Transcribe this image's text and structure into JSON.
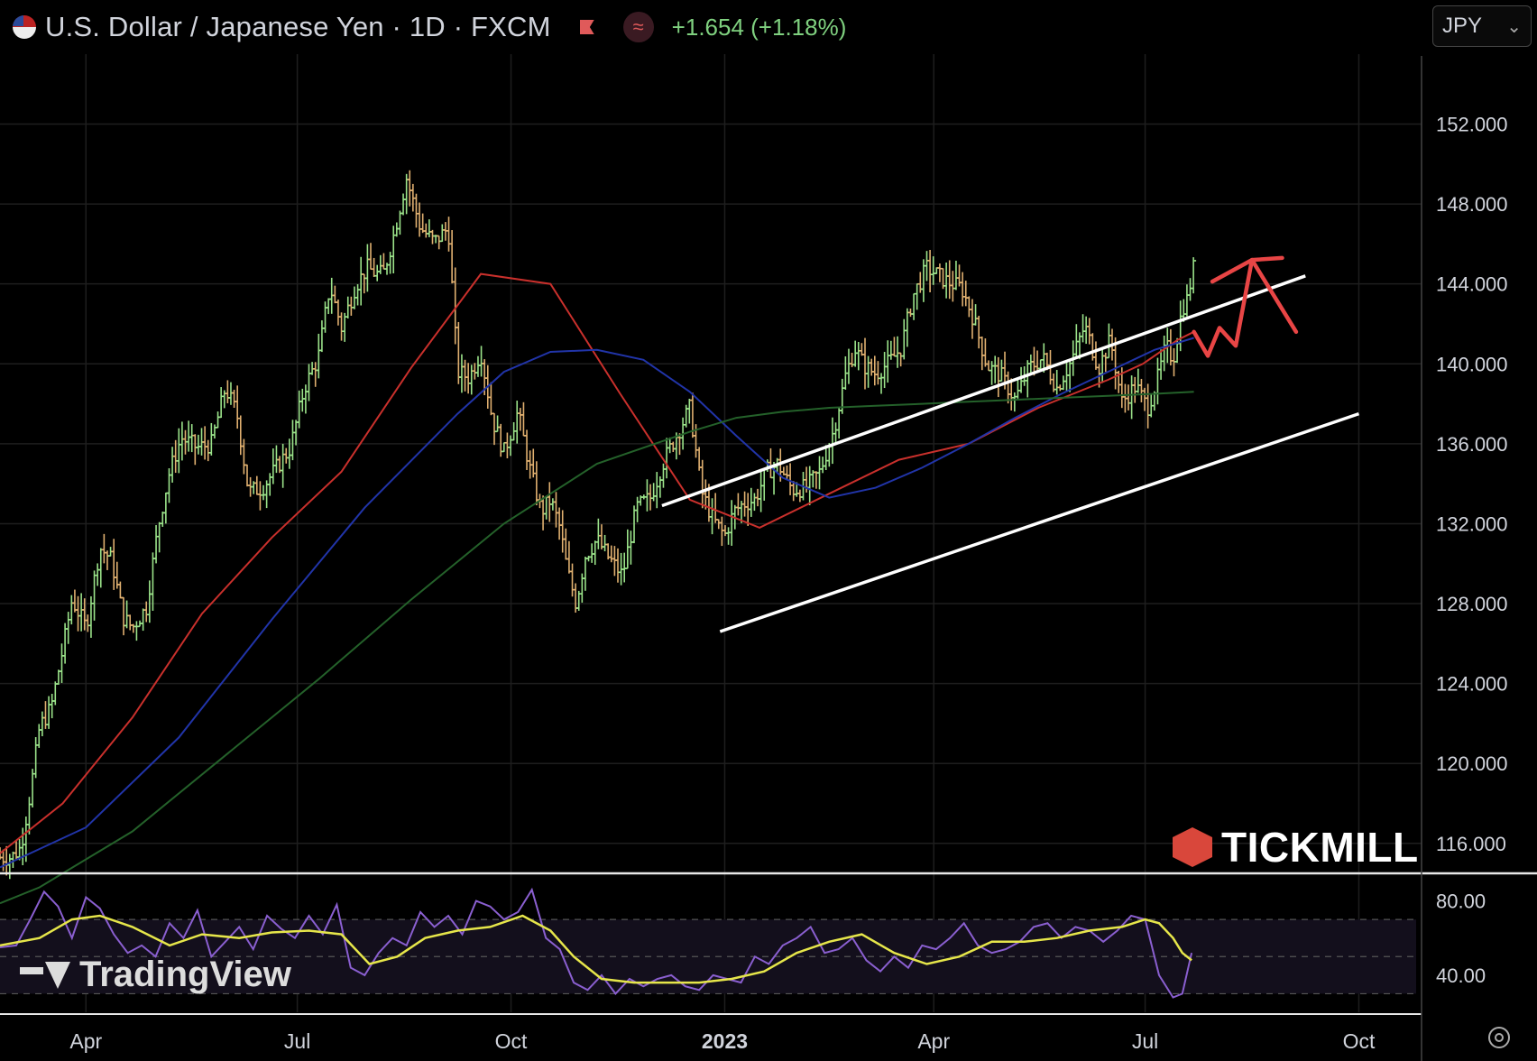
{
  "header": {
    "title": "U.S. Dollar / Japanese Yen · 1D · FXCM",
    "change": "+1.654 (+1.18%)",
    "indicator_symbol": "≈"
  },
  "currency_selector": {
    "value": "JPY",
    "chevron": "⌄"
  },
  "branding": {
    "tickmill": "TICKMILL",
    "tradingview": "TradingView"
  },
  "icons": {
    "flag": "us-flag-icon",
    "alert": "flag-alert-icon",
    "indicator": "indicator-icon",
    "settings": "gear-icon"
  },
  "colors": {
    "up": "#9be38a",
    "down": "#e0b070",
    "ma_short": "#c9302c",
    "ma_mid": "#2134a8",
    "ma_long": "#24612a",
    "channel": "#ffffff",
    "forecast": "#e84545",
    "rsi": "#8a5fd0",
    "rsi_ma": "#e6e64a",
    "positive": "#7fd07f"
  },
  "chart_data": [
    {
      "type": "line",
      "subtype": "candlestick",
      "title": "U.S. Dollar / Japanese Yen · 1D · FXCM",
      "x_ticks": [
        "Apr",
        "Jul",
        "Oct",
        "2023",
        "Apr",
        "Jul",
        "Oct"
      ],
      "x_tick_days": [
        90,
        181,
        273,
        365,
        455,
        546,
        638
      ],
      "xlim_days": [
        53,
        665
      ],
      "y_ticks": [
        "116.000",
        "120.000",
        "124.000",
        "128.000",
        "132.000",
        "136.000",
        "140.000",
        "144.000",
        "148.000",
        "152.000"
      ],
      "y_tick_values": [
        116,
        120,
        124,
        128,
        132,
        136,
        140,
        144,
        148,
        152
      ],
      "ylim": [
        114.5,
        155.5
      ],
      "grid": true,
      "price_path": {
        "days": [
          53,
          58,
          62,
          66,
          70,
          75,
          80,
          84,
          90,
          96,
          101,
          106,
          110,
          116,
          121,
          126,
          131,
          138,
          144,
          150,
          155,
          160,
          166,
          172,
          178,
          184,
          190,
          195,
          200,
          206,
          211,
          215,
          218,
          222,
          228,
          234,
          240,
          246,
          250,
          255,
          260,
          265,
          270,
          276,
          281,
          286,
          290,
          294,
          297,
          301,
          305,
          310,
          315,
          321,
          327,
          333,
          339,
          345,
          350,
          355,
          360,
          365,
          369,
          373,
          378,
          383,
          388,
          394,
          400,
          406,
          412,
          417,
          421,
          425,
          430,
          436,
          441,
          446,
          452,
          456,
          461,
          467,
          472,
          478,
          484,
          490,
          496,
          502,
          508,
          514,
          520,
          526,
          531,
          536,
          542,
          547,
          551,
          555,
          558,
          562,
          564,
          567
        ],
        "values": [
          115.3,
          115.3,
          115.8,
          118.5,
          121.8,
          122.8,
          125.7,
          128.2,
          126.8,
          130.8,
          130.2,
          127.3,
          126.8,
          127.8,
          131.8,
          134.6,
          136.3,
          135.8,
          136.0,
          138.8,
          137.5,
          133.6,
          133.8,
          134.8,
          135.8,
          138.8,
          140.3,
          143.9,
          141.8,
          143.9,
          144.8,
          144.5,
          144.5,
          146.2,
          149.3,
          146.8,
          146.1,
          146.8,
          139.6,
          139.3,
          140.6,
          137.2,
          135.6,
          137.6,
          134.8,
          132.6,
          133.2,
          131.8,
          129.8,
          128.0,
          130.4,
          131.2,
          130.3,
          129.4,
          132.8,
          133.3,
          135.2,
          136.6,
          137.8,
          133.6,
          132.2,
          131.4,
          132.6,
          133.0,
          133.2,
          134.6,
          135.0,
          133.7,
          133.8,
          134.6,
          136.7,
          139.4,
          140.8,
          139.9,
          139.5,
          140.1,
          140.8,
          143.4,
          144.8,
          144.5,
          144.1,
          143.8,
          142.3,
          139.9,
          139.4,
          138.2,
          139.8,
          140.3,
          138.8,
          140.1,
          141.9,
          139.8,
          141.2,
          138.1,
          138.9,
          137.8,
          139.1,
          140.9,
          140.2,
          142.8,
          143.2,
          144.9
        ]
      },
      "moving_averages": [
        {
          "period": 50,
          "color": "#c9302c",
          "days": [
            53,
            80,
            110,
            140,
            170,
            200,
            230,
            260,
            290,
            320,
            350,
            380,
            410,
            440,
            470,
            500,
            530,
            545,
            560,
            567
          ],
          "values": [
            115.5,
            118.0,
            122.3,
            127.5,
            131.3,
            134.6,
            139.8,
            144.5,
            144.0,
            138.5,
            133.2,
            131.8,
            133.5,
            135.2,
            136.0,
            137.8,
            139.2,
            140.0,
            141.2,
            141.6
          ]
        },
        {
          "period": 100,
          "color": "#2134a8",
          "days": [
            53,
            90,
            130,
            170,
            210,
            250,
            270,
            290,
            310,
            330,
            350,
            370,
            390,
            410,
            430,
            450,
            470,
            490,
            510,
            530,
            550,
            567
          ],
          "values": [
            114.8,
            116.8,
            121.3,
            127.2,
            132.8,
            137.5,
            139.6,
            140.6,
            140.7,
            140.2,
            138.6,
            136.4,
            134.3,
            133.3,
            133.8,
            134.8,
            136.0,
            137.3,
            138.5,
            139.6,
            140.7,
            141.3
          ]
        },
        {
          "period": 200,
          "color": "#24612a",
          "days": [
            53,
            70,
            110,
            150,
            190,
            230,
            270,
            310,
            350,
            370,
            390,
            410,
            430,
            450,
            470,
            490,
            510,
            530,
            550,
            567
          ],
          "values": [
            113.0,
            113.8,
            116.6,
            120.4,
            124.2,
            128.2,
            132.0,
            135.0,
            136.6,
            137.3,
            137.6,
            137.8,
            137.9,
            138.0,
            138.1,
            138.2,
            138.3,
            138.4,
            138.5,
            138.6
          ]
        }
      ],
      "channel": {
        "upper": {
          "days": [
            338,
            615
          ],
          "values": [
            132.9,
            144.4
          ]
        },
        "lower": {
          "days": [
            363,
            638
          ],
          "values": [
            126.6,
            137.5
          ]
        },
        "color": "#ffffff"
      },
      "forecast": {
        "days": [
          567,
          573,
          578,
          585,
          592,
          605,
          611
        ],
        "values": [
          141.6,
          140.4,
          141.8,
          140.9,
          145.2,
          145.3,
          141.6
        ],
        "color": "#e84545"
      }
    },
    {
      "type": "line",
      "title": "",
      "y_ticks": [
        "40.00",
        "80.00"
      ],
      "y_tick_values": [
        40,
        80
      ],
      "ylim": [
        20,
        90
      ],
      "band": [
        30,
        70
      ],
      "grid": true,
      "series": [
        {
          "days": [
            53,
            60,
            66,
            72,
            78,
            84,
            90,
            96,
            102,
            108,
            114,
            120,
            126,
            132,
            138,
            144,
            150,
            156,
            162,
            168,
            174,
            180,
            186,
            192,
            198,
            204,
            210,
            216,
            222,
            228,
            234,
            240,
            246,
            252,
            258,
            264,
            270,
            276,
            282,
            288,
            294,
            300,
            306,
            312,
            318,
            324,
            330,
            336,
            342,
            348,
            354,
            360,
            366,
            372,
            378,
            384,
            390,
            396,
            402,
            408,
            414,
            420,
            426,
            432,
            438,
            444,
            450,
            456,
            462,
            468,
            474,
            480,
            486,
            492,
            498,
            504,
            510,
            516,
            522,
            528,
            534,
            540,
            546,
            552,
            558,
            562,
            566
          ],
          "values": [
            55,
            56,
            70,
            85,
            77,
            60,
            82,
            76,
            62,
            52,
            56,
            50,
            68,
            60,
            75,
            50,
            58,
            66,
            54,
            72,
            65,
            60,
            72,
            62,
            78,
            44,
            40,
            52,
            60,
            56,
            74,
            66,
            72,
            62,
            80,
            77,
            70,
            74,
            86,
            60,
            54,
            36,
            32,
            40,
            30,
            38,
            34,
            38,
            40,
            34,
            32,
            40,
            38,
            36,
            50,
            46,
            56,
            60,
            66,
            52,
            54,
            60,
            48,
            42,
            50,
            44,
            56,
            54,
            60,
            68,
            56,
            52,
            54,
            58,
            66,
            68,
            60,
            66,
            64,
            58,
            64,
            72,
            70,
            40,
            28,
            30,
            52
          ],
          "color": "#8a5fd0"
        },
        {
          "days": [
            53,
            70,
            84,
            96,
            110,
            126,
            140,
            156,
            170,
            186,
            200,
            212,
            224,
            236,
            250,
            264,
            278,
            290,
            300,
            312,
            326,
            340,
            354,
            368,
            382,
            396,
            410,
            424,
            438,
            452,
            466,
            480,
            494,
            508,
            522,
            536,
            546,
            552,
            558,
            562,
            566
          ],
          "values": [
            56,
            60,
            70,
            72,
            66,
            56,
            62,
            60,
            63,
            64,
            62,
            46,
            50,
            60,
            64,
            66,
            72,
            64,
            50,
            38,
            36,
            36,
            36,
            38,
            42,
            52,
            58,
            62,
            52,
            46,
            50,
            58,
            58,
            60,
            64,
            66,
            70,
            68,
            60,
            52,
            48
          ],
          "color": "#e6e64a"
        }
      ]
    }
  ]
}
